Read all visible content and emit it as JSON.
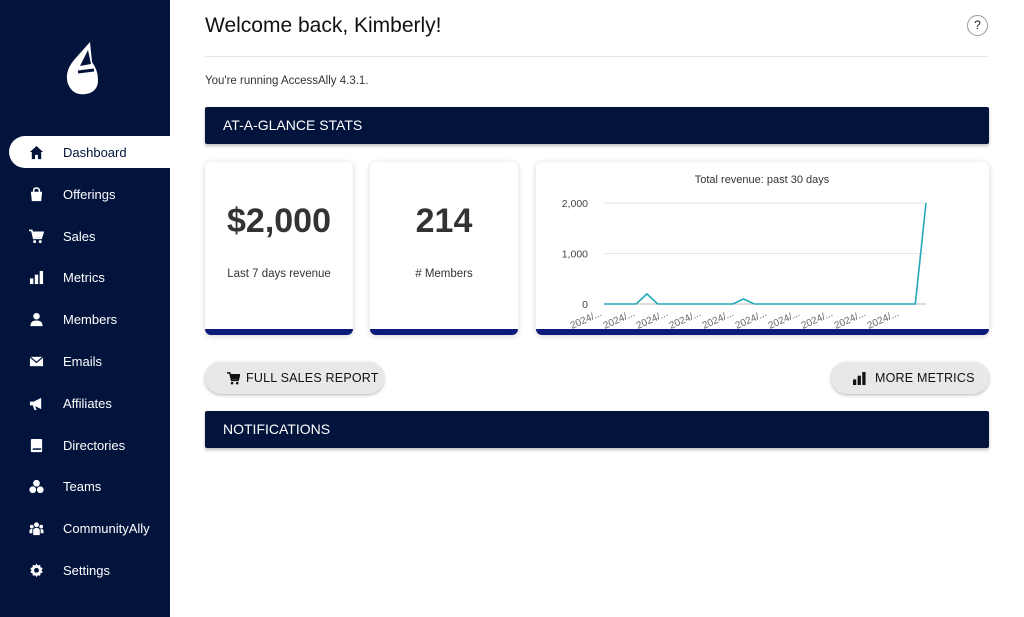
{
  "sidebar": {
    "items": [
      {
        "label": "Dashboard",
        "icon": "home-icon",
        "active": true
      },
      {
        "label": "Offerings",
        "icon": "shop-icon"
      },
      {
        "label": "Sales",
        "icon": "cart-icon"
      },
      {
        "label": "Metrics",
        "icon": "bar-chart-icon"
      },
      {
        "label": "Members",
        "icon": "person-icon"
      },
      {
        "label": "Emails",
        "icon": "envelope-icon"
      },
      {
        "label": "Affiliates",
        "icon": "megaphone-icon"
      },
      {
        "label": "Directories",
        "icon": "book-icon"
      },
      {
        "label": "Teams",
        "icon": "group-icon"
      },
      {
        "label": "CommunityAlly",
        "icon": "community-icon"
      },
      {
        "label": "Settings",
        "icon": "gear-icon"
      }
    ]
  },
  "header": {
    "welcome": "Welcome back, Kimberly!",
    "help": "?"
  },
  "version_text": "You're running AccessAlly 4.3.1.",
  "stats_banner": "AT-A-GLANCE STATS",
  "cards": {
    "revenue": {
      "value": "$2,000",
      "label": "Last 7 days revenue"
    },
    "members": {
      "value": "214",
      "label": "# Members"
    }
  },
  "buttons": {
    "sales_report": "FULL SALES REPORT",
    "more_metrics": "MORE METRICS"
  },
  "notifications_banner": "NOTIFICATIONS",
  "colors": {
    "navy": "#03143c",
    "card_accent": "#0c1a7a",
    "line": "#26a8b8"
  },
  "chart_data": {
    "type": "line",
    "title": "Total revenue: past 30 days",
    "y_ticks": [
      "2,000",
      "1,000",
      "0"
    ],
    "ylim": [
      0,
      2000
    ],
    "x_labels": [
      "2024/...",
      "2024/...",
      "2024/...",
      "2024/...",
      "2024/...",
      "2024/...",
      "2024/...",
      "2024/...",
      "2024/...",
      "2024/..."
    ],
    "values": [
      0,
      0,
      0,
      0,
      200,
      0,
      0,
      0,
      0,
      0,
      0,
      0,
      0,
      100,
      0,
      0,
      0,
      0,
      0,
      0,
      0,
      0,
      0,
      0,
      0,
      0,
      0,
      0,
      0,
      0,
      2000
    ]
  }
}
